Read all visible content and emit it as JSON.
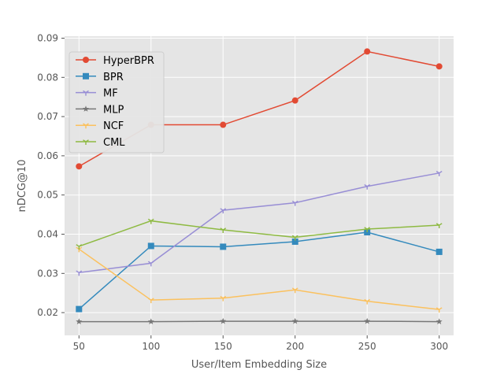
{
  "chart_data": {
    "type": "line",
    "title": "",
    "xlabel": "User/Item Embedding Size",
    "ylabel": "nDCG@10",
    "x": [
      50,
      100,
      150,
      200,
      250,
      300
    ],
    "xticks": [
      "50",
      "100",
      "150",
      "200",
      "250",
      "300"
    ],
    "yticks": [
      "0.02",
      "0.03",
      "0.04",
      "0.05",
      "0.06",
      "0.07",
      "0.08",
      "0.09"
    ],
    "xlim": [
      40,
      310
    ],
    "ylim": [
      0.0142,
      0.0905
    ],
    "grid": true,
    "legend_position": "top-left",
    "background_color": "#e5e5e5",
    "series": [
      {
        "name": "HyperBPR",
        "color": "#e24a33",
        "marker": "circle",
        "values": [
          0.0573,
          0.0679,
          0.0679,
          0.0741,
          0.0866,
          0.0828
        ]
      },
      {
        "name": "BPR",
        "color": "#348abd",
        "marker": "square",
        "values": [
          0.0209,
          0.037,
          0.0368,
          0.0381,
          0.0405,
          0.0355
        ]
      },
      {
        "name": "MF",
        "color": "#988ed5",
        "marker": "tri",
        "values": [
          0.0302,
          0.0326,
          0.0461,
          0.048,
          0.0522,
          0.0556
        ]
      },
      {
        "name": "MLP",
        "color": "#777777",
        "marker": "star",
        "values": [
          0.0177,
          0.0177,
          0.0178,
          0.0178,
          0.0178,
          0.0177
        ]
      },
      {
        "name": "NCF",
        "color": "#fbc15e",
        "marker": "tri",
        "values": [
          0.0362,
          0.0232,
          0.0237,
          0.0258,
          0.0229,
          0.0208
        ]
      },
      {
        "name": "CML",
        "color": "#8eba42",
        "marker": "tri",
        "values": [
          0.0369,
          0.0434,
          0.0411,
          0.0392,
          0.0413,
          0.0423
        ]
      }
    ]
  }
}
